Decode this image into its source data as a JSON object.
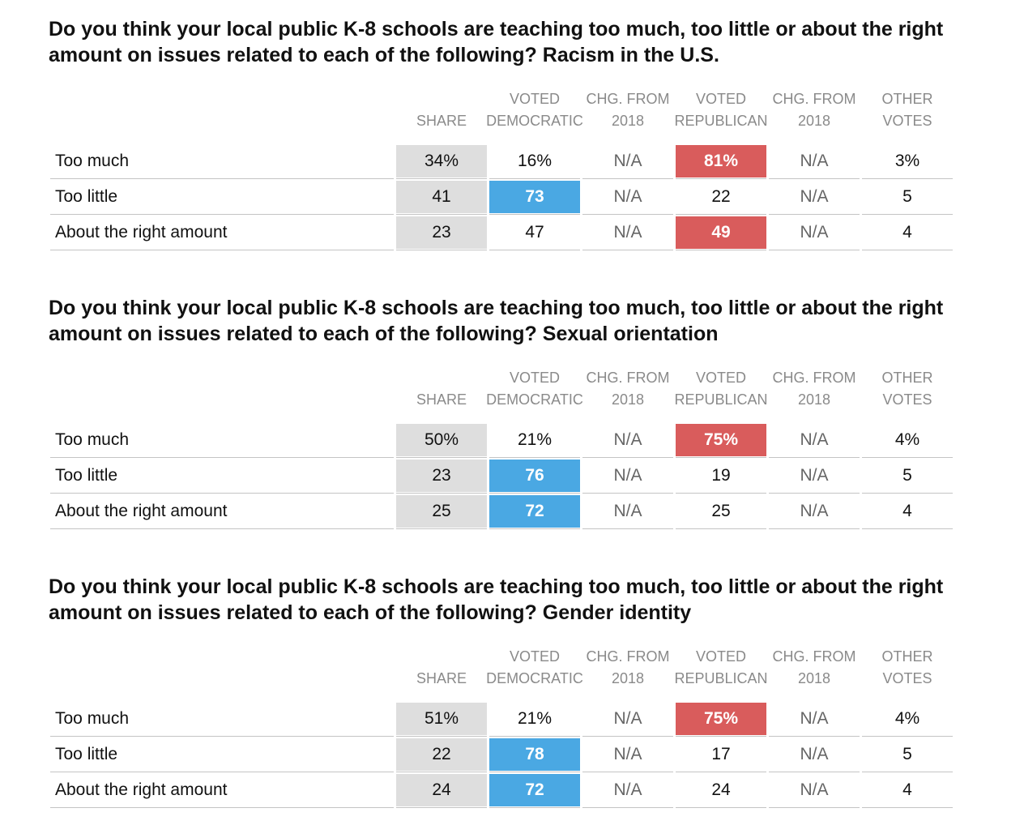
{
  "colors": {
    "share_bg": "#dedede",
    "democratic_highlight": "#4aa8e3",
    "republican_highlight": "#d95c5c",
    "header_text": "#8a8a8a",
    "rule": "#c4c4c4"
  },
  "headers": {
    "share": "SHARE",
    "voted_dem_1": "VOTED",
    "voted_dem_2": "DEMOCRATIC",
    "chg_dem_1": "CHG. FROM",
    "chg_dem_2": "2018",
    "voted_rep_1": "VOTED",
    "voted_rep_2": "REPUBLICAN",
    "chg_rep_1": "CHG. FROM",
    "chg_rep_2": "2018",
    "other_1": "OTHER",
    "other_2": "VOTES"
  },
  "chart_data": [
    {
      "type": "table",
      "title": "Do you think your local public K-8 schools are teaching too much, too little or about the right amount on issues related to each of the following? Racism in the U.S.",
      "columns": [
        "SHARE",
        "VOTED DEMOCRATIC",
        "CHG. FROM 2018",
        "VOTED REPUBLICAN",
        "CHG. FROM 2018",
        "OTHER VOTES"
      ],
      "rows": [
        {
          "label": "Too much",
          "cells": [
            "34%",
            "16%",
            "N/A",
            "81%",
            "N/A",
            "3%"
          ],
          "highlight_dem": false,
          "highlight_rep": true
        },
        {
          "label": "Too little",
          "cells": [
            "41",
            "73",
            "N/A",
            "22",
            "N/A",
            "5"
          ],
          "highlight_dem": true,
          "highlight_rep": false
        },
        {
          "label": "About the right amount",
          "cells": [
            "23",
            "47",
            "N/A",
            "49",
            "N/A",
            "4"
          ],
          "highlight_dem": false,
          "highlight_rep": true
        }
      ]
    },
    {
      "type": "table",
      "title": "Do you think your local public K-8 schools are teaching too much, too little or about the right amount on issues related to each of the following? Sexual orientation",
      "columns": [
        "SHARE",
        "VOTED DEMOCRATIC",
        "CHG. FROM 2018",
        "VOTED REPUBLICAN",
        "CHG. FROM 2018",
        "OTHER VOTES"
      ],
      "rows": [
        {
          "label": "Too much",
          "cells": [
            "50%",
            "21%",
            "N/A",
            "75%",
            "N/A",
            "4%"
          ],
          "highlight_dem": false,
          "highlight_rep": true
        },
        {
          "label": "Too little",
          "cells": [
            "23",
            "76",
            "N/A",
            "19",
            "N/A",
            "5"
          ],
          "highlight_dem": true,
          "highlight_rep": false
        },
        {
          "label": "About the right amount",
          "cells": [
            "25",
            "72",
            "N/A",
            "25",
            "N/A",
            "4"
          ],
          "highlight_dem": true,
          "highlight_rep": false
        }
      ]
    },
    {
      "type": "table",
      "title": "Do you think your local public K-8 schools are teaching too much, too little or about the right amount on issues related to each of the following? Gender identity",
      "columns": [
        "SHARE",
        "VOTED DEMOCRATIC",
        "CHG. FROM 2018",
        "VOTED REPUBLICAN",
        "CHG. FROM 2018",
        "OTHER VOTES"
      ],
      "rows": [
        {
          "label": "Too much",
          "cells": [
            "51%",
            "21%",
            "N/A",
            "75%",
            "N/A",
            "4%"
          ],
          "highlight_dem": false,
          "highlight_rep": true
        },
        {
          "label": "Too little",
          "cells": [
            "22",
            "78",
            "N/A",
            "17",
            "N/A",
            "5"
          ],
          "highlight_dem": true,
          "highlight_rep": false
        },
        {
          "label": "About the right amount",
          "cells": [
            "24",
            "72",
            "N/A",
            "24",
            "N/A",
            "4"
          ],
          "highlight_dem": true,
          "highlight_rep": false
        }
      ]
    }
  ]
}
